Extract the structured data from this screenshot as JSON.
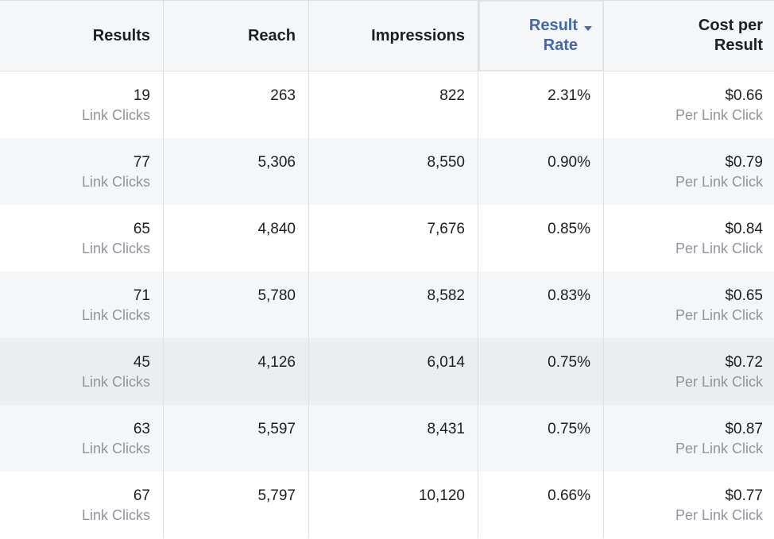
{
  "columns": [
    {
      "label_1": "Results",
      "label_2": ""
    },
    {
      "label_1": "Reach",
      "label_2": ""
    },
    {
      "label_1": "Impressions",
      "label_2": ""
    },
    {
      "label_1": "Result",
      "label_2": "Rate"
    },
    {
      "label_1": "Cost per",
      "label_2": "Result"
    }
  ],
  "sort": {
    "column": "Result Rate",
    "direction": "descending",
    "icon": "sort-descending-icon",
    "accent_color": "#4267b2"
  },
  "rows": [
    {
      "results": "19",
      "results_sub": "Link Clicks",
      "reach": "263",
      "impressions": "822",
      "result_rate": "2.31%",
      "cost": "$0.66",
      "cost_sub": "Per Link Click"
    },
    {
      "results": "77",
      "results_sub": "Link Clicks",
      "reach": "5,306",
      "impressions": "8,550",
      "result_rate": "0.90%",
      "cost": "$0.79",
      "cost_sub": "Per Link Click"
    },
    {
      "results": "65",
      "results_sub": "Link Clicks",
      "reach": "4,840",
      "impressions": "7,676",
      "result_rate": "0.85%",
      "cost": "$0.84",
      "cost_sub": "Per Link Click"
    },
    {
      "results": "71",
      "results_sub": "Link Clicks",
      "reach": "5,780",
      "impressions": "8,582",
      "result_rate": "0.83%",
      "cost": "$0.65",
      "cost_sub": "Per Link Click"
    },
    {
      "results": "45",
      "results_sub": "Link Clicks",
      "reach": "4,126",
      "impressions": "6,014",
      "result_rate": "0.75%",
      "cost": "$0.72",
      "cost_sub": "Per Link Click"
    },
    {
      "results": "63",
      "results_sub": "Link Clicks",
      "reach": "5,597",
      "impressions": "8,431",
      "result_rate": "0.75%",
      "cost": "$0.87",
      "cost_sub": "Per Link Click"
    },
    {
      "results": "67",
      "results_sub": "Link Clicks",
      "reach": "5,797",
      "impressions": "10,120",
      "result_rate": "0.66%",
      "cost": "$0.77",
      "cost_sub": "Per Link Click"
    }
  ]
}
